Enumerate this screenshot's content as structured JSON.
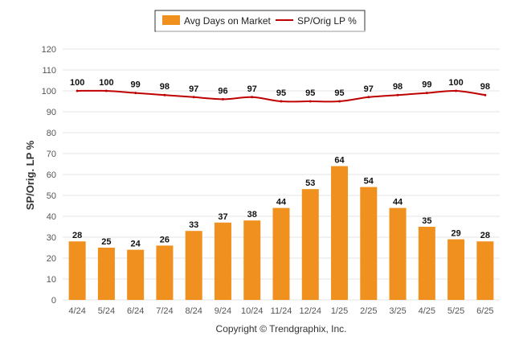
{
  "chart_data": {
    "type": "bar",
    "categories": [
      "4/24",
      "5/24",
      "6/24",
      "7/24",
      "8/24",
      "9/24",
      "10/24",
      "11/24",
      "12/24",
      "1/25",
      "2/25",
      "3/25",
      "4/25",
      "5/25",
      "6/25"
    ],
    "series": [
      {
        "name": "Avg Days on Market",
        "type": "bar",
        "color": "#f0901e",
        "values": [
          28,
          25,
          24,
          26,
          33,
          37,
          38,
          44,
          53,
          64,
          54,
          44,
          35,
          29,
          28
        ]
      },
      {
        "name": "SP/Orig LP %",
        "type": "line",
        "color": "#c00000",
        "values": [
          100,
          100,
          99,
          98,
          97,
          96,
          97,
          95,
          95,
          95,
          97,
          98,
          99,
          100,
          98
        ]
      }
    ],
    "ylabel": "SP/Orig. LP %",
    "xlabel": "",
    "ylim": [
      0,
      120
    ],
    "yticks": [
      0,
      10,
      20,
      30,
      40,
      50,
      60,
      70,
      80,
      90,
      100,
      110,
      120
    ],
    "grid": true,
    "legend_position": "top-center"
  },
  "legend": {
    "bar_label": "Avg Days on Market",
    "line_label": "SP/Orig LP %"
  },
  "footer": {
    "copyright": "Copyright © Trendgraphix, Inc."
  },
  "colors": {
    "bar": "#f0901e",
    "line": "#c00000",
    "grid": "#e6e6e6"
  }
}
